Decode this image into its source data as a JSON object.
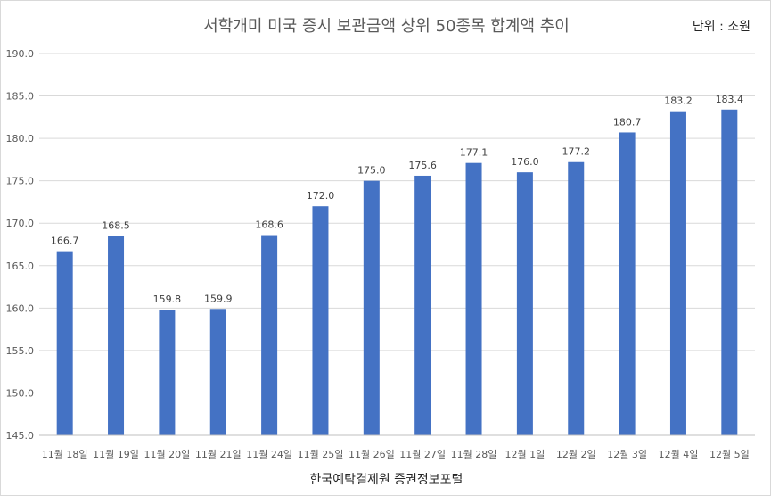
{
  "chart_data": {
    "type": "bar",
    "title": "서학개미 미국 증시 보관금액 상위 50종목 합계액 추이",
    "unit": "단위 : 조원",
    "source": "한국예탁결제원 증권정보포털",
    "categories": [
      "11월 18일",
      "11월 19일",
      "11월 20일",
      "11월 21일",
      "11월 24일",
      "11월 25일",
      "11월 26일",
      "11월 27일",
      "11월 28일",
      "12월 1일",
      "12월 2일",
      "12월 3일",
      "12월 4일",
      "12월 5일"
    ],
    "values": [
      166.7,
      168.5,
      159.8,
      159.9,
      168.6,
      172.0,
      175.0,
      175.6,
      177.1,
      176.0,
      177.2,
      180.7,
      183.2,
      183.4
    ],
    "data_labels": [
      "166.7",
      "168.5",
      "159.8",
      "159.9",
      "168.6",
      "172.0",
      "175.0",
      "175.6",
      "177.1",
      "176.0",
      "177.2",
      "180.7",
      "183.2",
      "183.4"
    ],
    "ylim": [
      145.0,
      190.0
    ],
    "yticks": [
      "145.0",
      "150.0",
      "155.0",
      "160.0",
      "165.0",
      "170.0",
      "175.0",
      "180.0",
      "185.0",
      "190.0"
    ],
    "grid": true,
    "bar_color": "#4472c4",
    "grid_color": "#d9d9d9"
  }
}
